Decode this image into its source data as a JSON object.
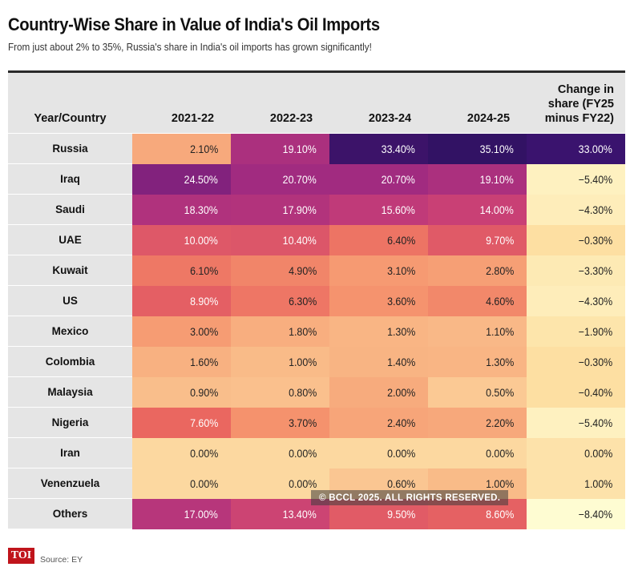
{
  "title": "Country-Wise Share in Value of India's Oil Imports",
  "subtitle": "From just about 2% to 35%, Russia's share in India's oil imports has grown significantly!",
  "source": "Source: EY",
  "logo_text": "TOI",
  "watermark": "© BCCL 2025. ALL RIGHTS RESERVED.",
  "colors": {
    "header_bg": "#e5e5e5",
    "scale_low": "#fce6b3",
    "scale_mid": "#f26f55",
    "scale_high": "#3a136e",
    "change_positive": "#3a136e",
    "change_negative_low": "#fefbd0",
    "change_negative_high": "#fde6a8"
  },
  "chart_data": {
    "type": "table",
    "row_header_label": "Year/Country",
    "columns": [
      "2021-22",
      "2022-23",
      "2023-24",
      "2024-25"
    ],
    "change_column_label_lines": [
      "Change in",
      "share (FY25",
      "minus FY22)"
    ],
    "rows": [
      {
        "country": "Russia",
        "values": [
          "2.10%",
          "19.10%",
          "33.40%",
          "35.10%"
        ],
        "change": "33.00%"
      },
      {
        "country": "Iraq",
        "values": [
          "24.50%",
          "20.70%",
          "20.70%",
          "19.10%"
        ],
        "change": "−5.40%"
      },
      {
        "country": "Saudi",
        "values": [
          "18.30%",
          "17.90%",
          "15.60%",
          "14.00%"
        ],
        "change": "−4.30%"
      },
      {
        "country": "UAE",
        "values": [
          "10.00%",
          "10.40%",
          "6.40%",
          "9.70%"
        ],
        "change": "−0.30%"
      },
      {
        "country": "Kuwait",
        "values": [
          "6.10%",
          "4.90%",
          "3.10%",
          "2.80%"
        ],
        "change": "−3.30%"
      },
      {
        "country": "US",
        "values": [
          "8.90%",
          "6.30%",
          "3.60%",
          "4.60%"
        ],
        "change": "−4.30%"
      },
      {
        "country": "Mexico",
        "values": [
          "3.00%",
          "1.80%",
          "1.30%",
          "1.10%"
        ],
        "change": "−1.90%"
      },
      {
        "country": "Colombia",
        "values": [
          "1.60%",
          "1.00%",
          "1.40%",
          "1.30%"
        ],
        "change": "−0.30%"
      },
      {
        "country": "Malaysia",
        "values": [
          "0.90%",
          "0.80%",
          "2.00%",
          "0.50%"
        ],
        "change": "−0.40%"
      },
      {
        "country": "Nigeria",
        "values": [
          "7.60%",
          "3.70%",
          "2.40%",
          "2.20%"
        ],
        "change": "−5.40%"
      },
      {
        "country": "Iran",
        "values": [
          "0.00%",
          "0.00%",
          "0.00%",
          "0.00%"
        ],
        "change": "0.00%"
      },
      {
        "country": "Venenzuela",
        "values": [
          "0.00%",
          "0.00%",
          "0.60%",
          "1.00%"
        ],
        "change": "1.00%"
      },
      {
        "country": "Others",
        "values": [
          "17.00%",
          "13.40%",
          "9.50%",
          "8.60%"
        ],
        "change": "−8.40%"
      }
    ]
  }
}
